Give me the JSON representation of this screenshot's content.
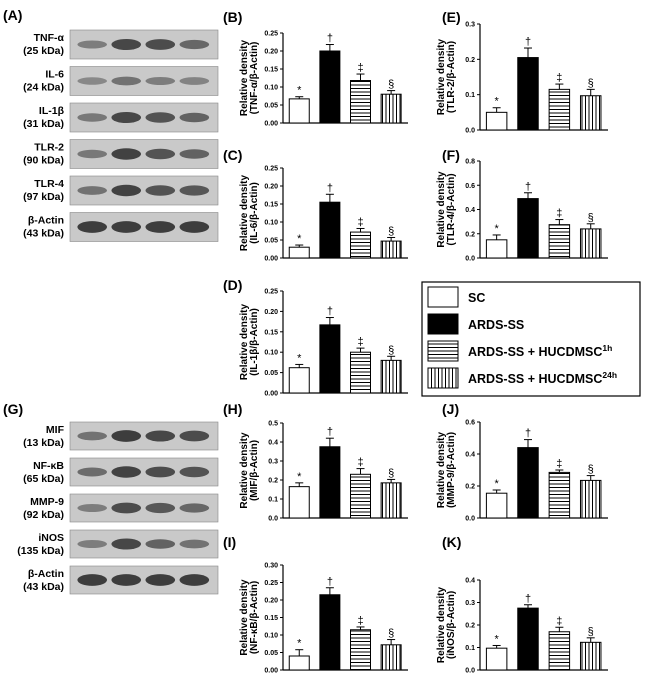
{
  "colors": {
    "sc": "#ffffff",
    "ards": "#000000",
    "stroke": "#000000",
    "blot_band": "#2f2f2f",
    "blot_bg": "#c9c9c9"
  },
  "legend": {
    "items": [
      {
        "key": "sc",
        "text": "SC",
        "sup": ""
      },
      {
        "key": "ards",
        "text": "ARDS-SS",
        "sup": ""
      },
      {
        "key": "h1",
        "text": "ARDS-SS + HUCDMSC",
        "sup": "1h"
      },
      {
        "key": "h24",
        "text": "ARDS-SS + HUCDMSC",
        "sup": "24h"
      }
    ]
  },
  "blots": [
    {
      "panel": "(A)",
      "rows": [
        {
          "name": "TNF-α",
          "size": "(25 kDa)",
          "intensity": [
            0.35,
            0.85,
            0.8,
            0.55
          ]
        },
        {
          "name": "IL-6",
          "size": "(24 kDa)",
          "intensity": [
            0.25,
            0.45,
            0.35,
            0.3
          ]
        },
        {
          "name": "IL-1β",
          "size": "(31 kDa)",
          "intensity": [
            0.4,
            0.85,
            0.75,
            0.6
          ]
        },
        {
          "name": "TLR-2",
          "size": "(90 kDa)",
          "intensity": [
            0.4,
            0.9,
            0.75,
            0.6
          ]
        },
        {
          "name": "TLR-4",
          "size": "(97 kDa)",
          "intensity": [
            0.45,
            0.9,
            0.75,
            0.7
          ]
        },
        {
          "name": "β-Actin",
          "size": "(43 kDa)",
          "intensity": [
            0.95,
            0.95,
            0.95,
            0.95
          ]
        }
      ]
    },
    {
      "panel": "(G)",
      "rows": [
        {
          "name": "MIF",
          "size": "(13 kDa)",
          "intensity": [
            0.45,
            0.95,
            0.85,
            0.8
          ]
        },
        {
          "name": "NF-κB",
          "size": "(65 kDa)",
          "intensity": [
            0.5,
            0.9,
            0.8,
            0.75
          ]
        },
        {
          "name": "MMP-9",
          "size": "(92 kDa)",
          "intensity": [
            0.35,
            0.8,
            0.7,
            0.55
          ]
        },
        {
          "name": "iNOS",
          "size": "(135 kDa)",
          "intensity": [
            0.35,
            0.85,
            0.6,
            0.45
          ]
        },
        {
          "name": "β-Actin",
          "size": "(43 kDa)",
          "intensity": [
            0.95,
            0.95,
            0.95,
            0.95
          ]
        }
      ]
    }
  ],
  "chart_data": [
    {
      "panel": "(B)",
      "type": "bar",
      "ylabel": [
        "Relative density",
        "(TNF-α/β-Actin)"
      ],
      "ylim": [
        0,
        0.25
      ],
      "yticks": [
        "0.00",
        "0.05",
        "0.10",
        "0.15",
        "0.20",
        "0.25"
      ],
      "categories": [
        "SC",
        "ARDS-SS",
        "ARDS-SS + HUCDMSC1h",
        "ARDS-SS + HUCDMSC24h"
      ],
      "values": [
        0.067,
        0.2,
        0.118,
        0.08
      ],
      "errors": [
        0.006,
        0.018,
        0.018,
        0.01
      ],
      "annotations": [
        "*",
        "†",
        "‡",
        "§"
      ]
    },
    {
      "panel": "(E)",
      "type": "bar",
      "ylabel": [
        "Relative density",
        "(TLR-2/β-Actin)"
      ],
      "ylim": [
        0,
        0.3
      ],
      "yticks": [
        "0.0",
        "0.1",
        "0.2",
        "0.3"
      ],
      "categories": [
        "SC",
        "ARDS-SS",
        "ARDS-SS + HUCDMSC1h",
        "ARDS-SS + HUCDMSC24h"
      ],
      "values": [
        0.05,
        0.205,
        0.115,
        0.097
      ],
      "errors": [
        0.013,
        0.027,
        0.015,
        0.018
      ],
      "annotations": [
        "*",
        "†",
        "‡",
        "§"
      ]
    },
    {
      "panel": "(C)",
      "type": "bar",
      "ylabel": [
        "Relative density",
        "(IL-6/β-Actin)"
      ],
      "ylim": [
        0,
        0.25
      ],
      "yticks": [
        "0.00",
        "0.05",
        "0.10",
        "0.15",
        "0.20",
        "0.25"
      ],
      "categories": [
        "SC",
        "ARDS-SS",
        "ARDS-SS + HUCDMSC1h",
        "ARDS-SS + HUCDMSC24h"
      ],
      "values": [
        0.03,
        0.155,
        0.072,
        0.047
      ],
      "errors": [
        0.006,
        0.022,
        0.01,
        0.01
      ],
      "annotations": [
        "*",
        "†",
        "‡",
        "§"
      ]
    },
    {
      "panel": "(F)",
      "type": "bar",
      "ylabel": [
        "Relative density",
        "(TLR-4/β-Actin)"
      ],
      "ylim": [
        0,
        0.8
      ],
      "yticks": [
        "0.0",
        "0.2",
        "0.4",
        "0.6",
        "0.8"
      ],
      "categories": [
        "SC",
        "ARDS-SS",
        "ARDS-SS + HUCDMSC1h",
        "ARDS-SS + HUCDMSC24h"
      ],
      "values": [
        0.15,
        0.49,
        0.275,
        0.24
      ],
      "errors": [
        0.04,
        0.048,
        0.042,
        0.042
      ],
      "annotations": [
        "*",
        "†",
        "‡",
        "§"
      ]
    },
    {
      "panel": "(D)",
      "type": "bar",
      "ylabel": [
        "Relative density",
        "(IL-1β/β-Actin)"
      ],
      "ylim": [
        0,
        0.25
      ],
      "yticks": [
        "0.00",
        "0.05",
        "0.10",
        "0.15",
        "0.20",
        "0.25"
      ],
      "categories": [
        "SC",
        "ARDS-SS",
        "ARDS-SS + HUCDMSC1h",
        "ARDS-SS + HUCDMSC24h"
      ],
      "values": [
        0.062,
        0.167,
        0.1,
        0.08
      ],
      "errors": [
        0.008,
        0.018,
        0.01,
        0.01
      ],
      "annotations": [
        "*",
        "†",
        "‡",
        "§"
      ]
    },
    {
      "panel": "(H)",
      "type": "bar",
      "ylabel": [
        "Relative density",
        "(MIF/β-Actin)"
      ],
      "ylim": [
        0,
        0.5
      ],
      "yticks": [
        "0.0",
        "0.1",
        "0.2",
        "0.3",
        "0.4",
        "0.5"
      ],
      "categories": [
        "SC",
        "ARDS-SS",
        "ARDS-SS + HUCDMSC1h",
        "ARDS-SS + HUCDMSC24h"
      ],
      "values": [
        0.165,
        0.375,
        0.23,
        0.185
      ],
      "errors": [
        0.02,
        0.045,
        0.03,
        0.018
      ],
      "annotations": [
        "*",
        "†",
        "‡",
        "§"
      ]
    },
    {
      "panel": "(J)",
      "type": "bar",
      "ylabel": [
        "Relative density",
        "(MMP-9/β-Actin)"
      ],
      "ylim": [
        0,
        0.6
      ],
      "yticks": [
        "0.0",
        "0.2",
        "0.4",
        "0.6"
      ],
      "categories": [
        "SC",
        "ARDS-SS",
        "ARDS-SS + HUCDMSC1h",
        "ARDS-SS + HUCDMSC24h"
      ],
      "values": [
        0.155,
        0.44,
        0.285,
        0.235
      ],
      "errors": [
        0.02,
        0.05,
        0.015,
        0.03
      ],
      "annotations": [
        "*",
        "†",
        "‡",
        "§"
      ]
    },
    {
      "panel": "(I)",
      "type": "bar",
      "ylabel": [
        "Relative density",
        "(NF-κB/β-Actin)"
      ],
      "ylim": [
        0,
        0.3
      ],
      "yticks": [
        "0.00",
        "0.05",
        "0.10",
        "0.15",
        "0.20",
        "0.25",
        "0.30"
      ],
      "categories": [
        "SC",
        "ARDS-SS",
        "ARDS-SS + HUCDMSC1h",
        "ARDS-SS + HUCDMSC24h"
      ],
      "values": [
        0.04,
        0.215,
        0.115,
        0.072
      ],
      "errors": [
        0.018,
        0.02,
        0.008,
        0.015
      ],
      "annotations": [
        "*",
        "†",
        "‡",
        "§"
      ]
    },
    {
      "panel": "(K)",
      "type": "bar",
      "ylabel": [
        "Relative density",
        "(iNOS/β-Actin)"
      ],
      "ylim": [
        0,
        0.4
      ],
      "yticks": [
        "0.0",
        "0.1",
        "0.2",
        "0.3",
        "0.4"
      ],
      "categories": [
        "SC",
        "ARDS-SS",
        "ARDS-SS + HUCDMSC1h",
        "ARDS-SS + HUCDMSC24h"
      ],
      "values": [
        0.097,
        0.275,
        0.17,
        0.123
      ],
      "errors": [
        0.012,
        0.015,
        0.02,
        0.02
      ],
      "annotations": [
        "*",
        "†",
        "‡",
        "§"
      ]
    }
  ]
}
